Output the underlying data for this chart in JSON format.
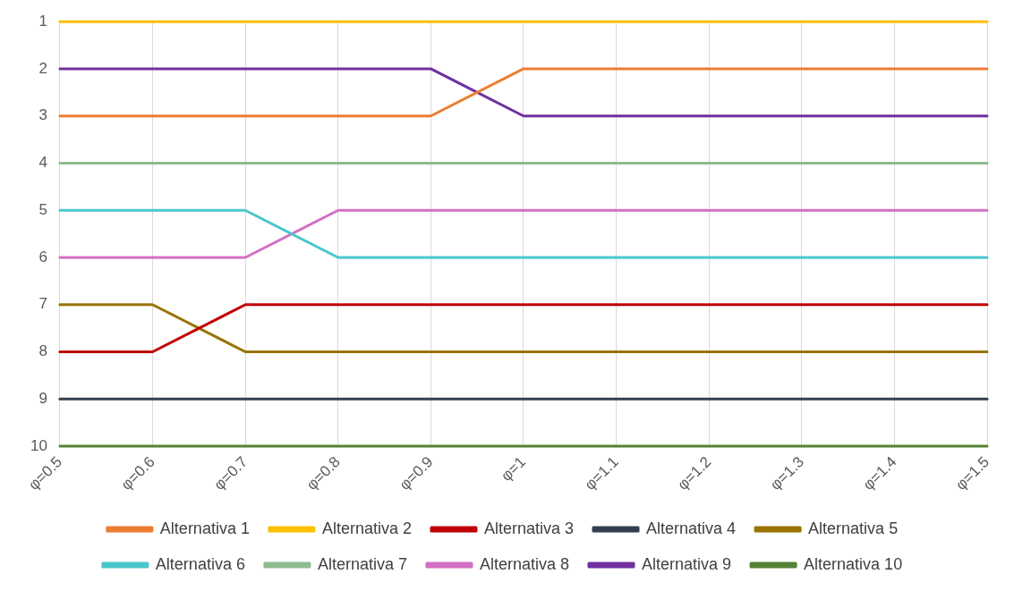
{
  "chart_data": {
    "type": "line",
    "categories": [
      "φ=0.5",
      "φ=0.6",
      "φ=0.7",
      "φ=0.8",
      "φ=0.9",
      "φ=1",
      "φ=1.1",
      "φ=1.2",
      "φ=1.3",
      "φ=1.4",
      "φ=1.5"
    ],
    "ylim": [
      10,
      1
    ],
    "yticks": [
      1,
      2,
      3,
      4,
      5,
      6,
      7,
      8,
      9,
      10
    ],
    "grid": "x",
    "legend": "bottom",
    "marker": "none",
    "line_style": "solid",
    "series": [
      {
        "name": "Alternativa 1",
        "color": "#ed7d31",
        "values": [
          3,
          3,
          3,
          3,
          3,
          2,
          2,
          2,
          2,
          2,
          2
        ]
      },
      {
        "name": "Alternativa 2",
        "color": "#ffc000",
        "values": [
          1,
          1,
          1,
          1,
          1,
          1,
          1,
          1,
          1,
          1,
          1
        ]
      },
      {
        "name": "Alternativa 3",
        "color": "#c00000",
        "values": [
          8,
          8,
          7,
          7,
          7,
          7,
          7,
          7,
          7,
          7,
          7
        ]
      },
      {
        "name": "Alternativa 4",
        "color": "#323f4f",
        "values": [
          9,
          9,
          9,
          9,
          9,
          9,
          9,
          9,
          9,
          9,
          9
        ]
      },
      {
        "name": "Alternativa 5",
        "color": "#997300",
        "values": [
          7,
          7,
          8,
          8,
          8,
          8,
          8,
          8,
          8,
          8,
          8
        ]
      },
      {
        "name": "Alternativa 6",
        "color": "#4bc6cc",
        "values": [
          5,
          5,
          5,
          6,
          6,
          6,
          6,
          6,
          6,
          6,
          6
        ]
      },
      {
        "name": "Alternativa 7",
        "color": "#8fbc8f",
        "values": [
          4,
          4,
          4,
          4,
          4,
          4,
          4,
          4,
          4,
          4,
          4
        ]
      },
      {
        "name": "Alternativa 8",
        "color": "#d46fc4",
        "values": [
          6,
          6,
          6,
          5,
          5,
          5,
          5,
          5,
          5,
          5,
          5
        ]
      },
      {
        "name": "Alternativa 9",
        "color": "#7030a0",
        "values": [
          2,
          2,
          2,
          2,
          2,
          3,
          3,
          3,
          3,
          3,
          3
        ]
      },
      {
        "name": "Alternativa 10",
        "color": "#548235",
        "values": [
          10,
          10,
          10,
          10,
          10,
          10,
          10,
          10,
          10,
          10,
          10
        ]
      }
    ]
  }
}
